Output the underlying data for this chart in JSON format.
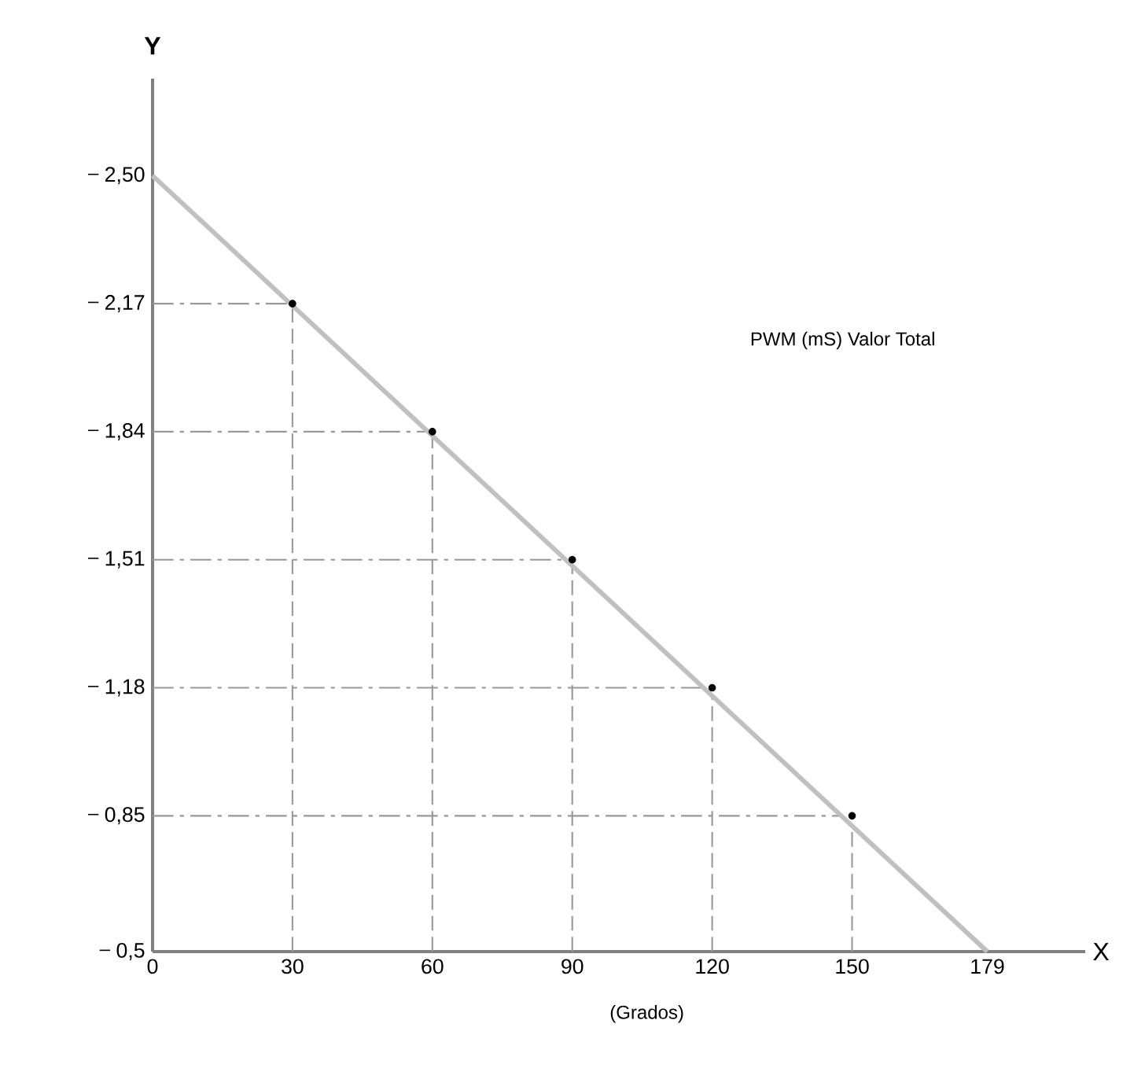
{
  "chart_data": {
    "type": "line",
    "xlabel": "(Grados)",
    "ylabel": "Y",
    "annotations": [
      "PWM (mS) Valor Total",
      "X"
    ],
    "xlim": [
      0,
      200
    ],
    "ylim": [
      0.5,
      2.75
    ],
    "xticks": [
      0,
      30,
      60,
      90,
      120,
      150,
      179
    ],
    "yticks": [
      {
        "value": 0.5,
        "label": "0,5"
      },
      {
        "value": 0.85,
        "label": "0,85"
      },
      {
        "value": 1.18,
        "label": "1,18"
      },
      {
        "value": 1.51,
        "label": "1,51"
      },
      {
        "value": 1.84,
        "label": "1,84"
      },
      {
        "value": 2.17,
        "label": "2,17"
      },
      {
        "value": 2.5,
        "label": "2,50"
      }
    ],
    "ref_lines": [
      {
        "axis": "x",
        "value": 30,
        "line_style": "dashed",
        "color": "#999999"
      },
      {
        "axis": "x",
        "value": 60,
        "line_style": "dashed",
        "color": "#999999"
      },
      {
        "axis": "x",
        "value": 90,
        "line_style": "dashed",
        "color": "#999999"
      },
      {
        "axis": "x",
        "value": 120,
        "line_style": "dashed",
        "color": "#999999"
      },
      {
        "axis": "x",
        "value": 150,
        "line_style": "dashed",
        "color": "#999999"
      },
      {
        "axis": "y",
        "value": 2.17,
        "line_style": "dashed",
        "color": "#999999"
      },
      {
        "axis": "y",
        "value": 1.84,
        "line_style": "dashed",
        "color": "#999999"
      },
      {
        "axis": "y",
        "value": 1.51,
        "line_style": "dashed",
        "color": "#999999"
      },
      {
        "axis": "y",
        "value": 1.18,
        "line_style": "dashed",
        "color": "#999999"
      },
      {
        "axis": "y",
        "value": 0.85,
        "line_style": "dashed",
        "color": "#999999"
      }
    ],
    "series": [
      {
        "color": "#c0c0c0",
        "x": [
          0,
          179
        ],
        "values": [
          2.5,
          0.5
        ]
      },
      {
        "type": "scatter",
        "color": "#000000",
        "x": [
          30,
          60,
          90,
          120,
          150
        ],
        "values": [
          2.17,
          1.84,
          1.51,
          1.18,
          0.85
        ]
      }
    ]
  }
}
